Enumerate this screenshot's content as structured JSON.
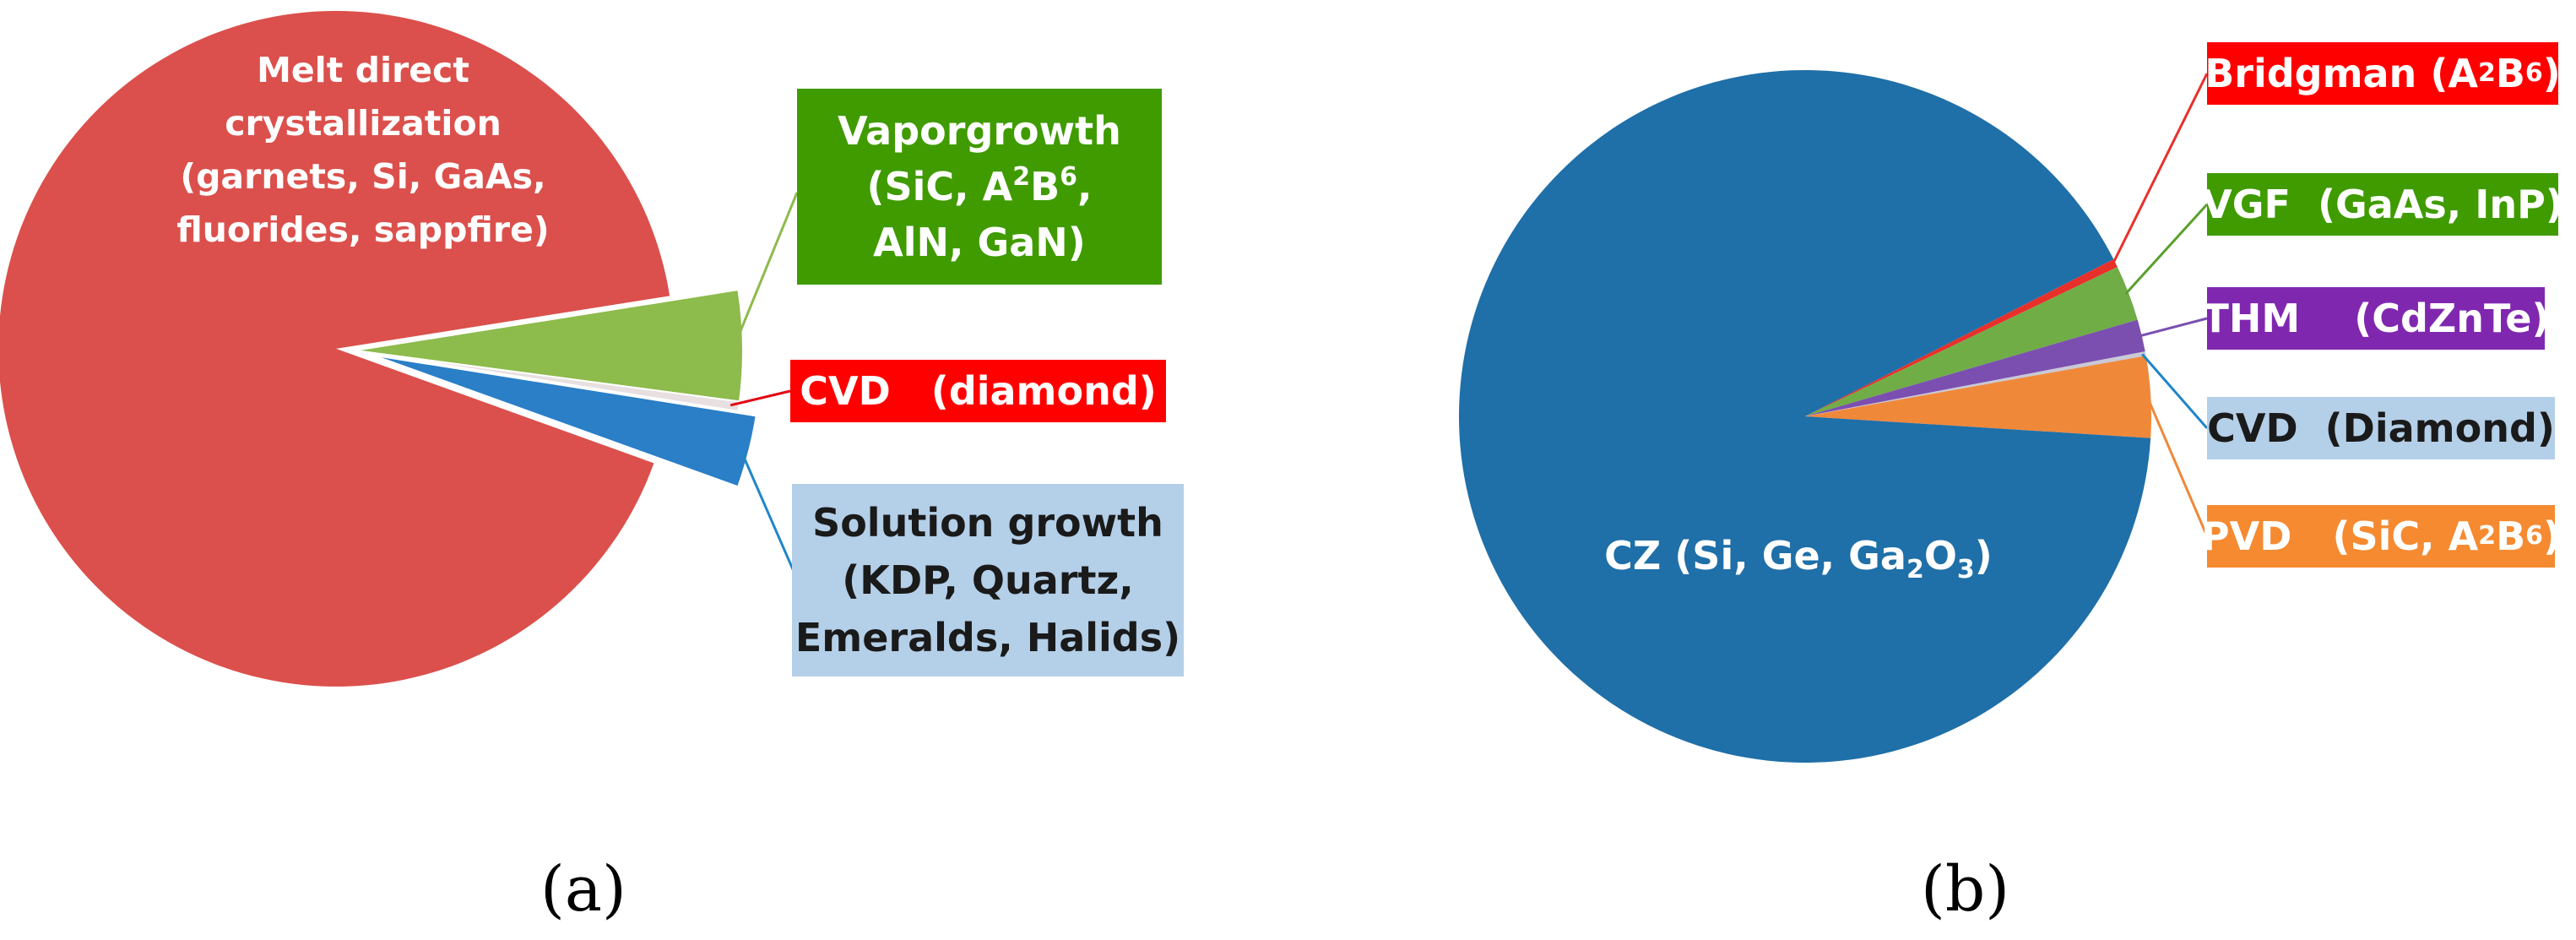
{
  "chart_data": [
    {
      "type": "pie",
      "panel_label": "(a)",
      "slices": [
        {
          "label": "Melt direct crystallization (garnets, Si, GaAs, fluorides, sappfire)",
          "value": 92.0,
          "color": "#db504c",
          "exploded": true
        },
        {
          "label": "Vapor growth (SiC, A2B6, AlN, GaN)",
          "value": 4.6,
          "color": "#8dbb4c",
          "exploded": false
        },
        {
          "label": "CVD (diamond)",
          "value": 0.4,
          "color": "#e8e0e0",
          "exploded": false
        },
        {
          "label": "Solution growth (KDP, Quartz, Emeralds, Halids)",
          "value": 3.0,
          "color": "#2a7fc7",
          "exploded": true
        }
      ],
      "callouts": {
        "main": {
          "lines": [
            "Melt direct",
            "crystallization",
            "(garnets, Si, GaAs,",
            "fluorides, sappfire)"
          ]
        },
        "vapor": {
          "lines": [
            [
              "Vapor",
              "growth"
            ],
            "(SiC, A|2|B|6|,",
            "AlN, GaN)"
          ],
          "bg": "#3f9b00",
          "line_color": "#8dbb4c"
        },
        "cvd": {
          "lines": [
            "CVD   (diamond)"
          ],
          "bg": "#ff0000",
          "line_color": "#e30613"
        },
        "solution": {
          "lines": [
            "Solution growth",
            "(KDP, Quartz,",
            "Emeralds, Halids)"
          ],
          "bg": "#b4cfe8",
          "line_color": "#1f86c9"
        }
      }
    },
    {
      "type": "pie",
      "panel_label": "(b)",
      "slices": [
        {
          "label": "CZ (Si, Ge, Ga2O3)",
          "value": 91.5,
          "color": "#1f6fa8"
        },
        {
          "label": "Bridgman (A2B6)",
          "value": 0.4,
          "color": "#e8302b"
        },
        {
          "label": "VGF (GaAs, InP)",
          "value": 2.6,
          "color": "#70ad47"
        },
        {
          "label": "THM (CdZnTe)",
          "value": 1.5,
          "color": "#7b4fb0"
        },
        {
          "label": "CVD (Diamond)",
          "value": 0.2,
          "color": "#c9c9d6"
        },
        {
          "label": "PVD (SiC, A2B6)",
          "value": 3.8,
          "color": "#f0883a"
        }
      ],
      "callouts": {
        "main": "CZ (Si, Ge, Ga|2|O|3|)",
        "bridgman": {
          "text": "Bridgman (A|2|B|6|)",
          "bg": "#ff0000",
          "line_color": "#e8302b"
        },
        "vgf": {
          "text": "VGF  (GaAs, InP)",
          "bg": "#3f9b00",
          "line_color": "#5aa02c"
        },
        "thm": {
          "text": "THM    (CdZnTe)",
          "bg": "#8027b0",
          "line_color": "#7b4fb0"
        },
        "cvd": {
          "text": "CVD  (Diamond)",
          "bg": "#b4cfe8",
          "line_color": "#1f86c9"
        },
        "pvd": {
          "text": "PVD   (SiC, A|2|B|6|)",
          "bg": "#f58a30",
          "line_color": "#f0883a"
        }
      }
    }
  ]
}
